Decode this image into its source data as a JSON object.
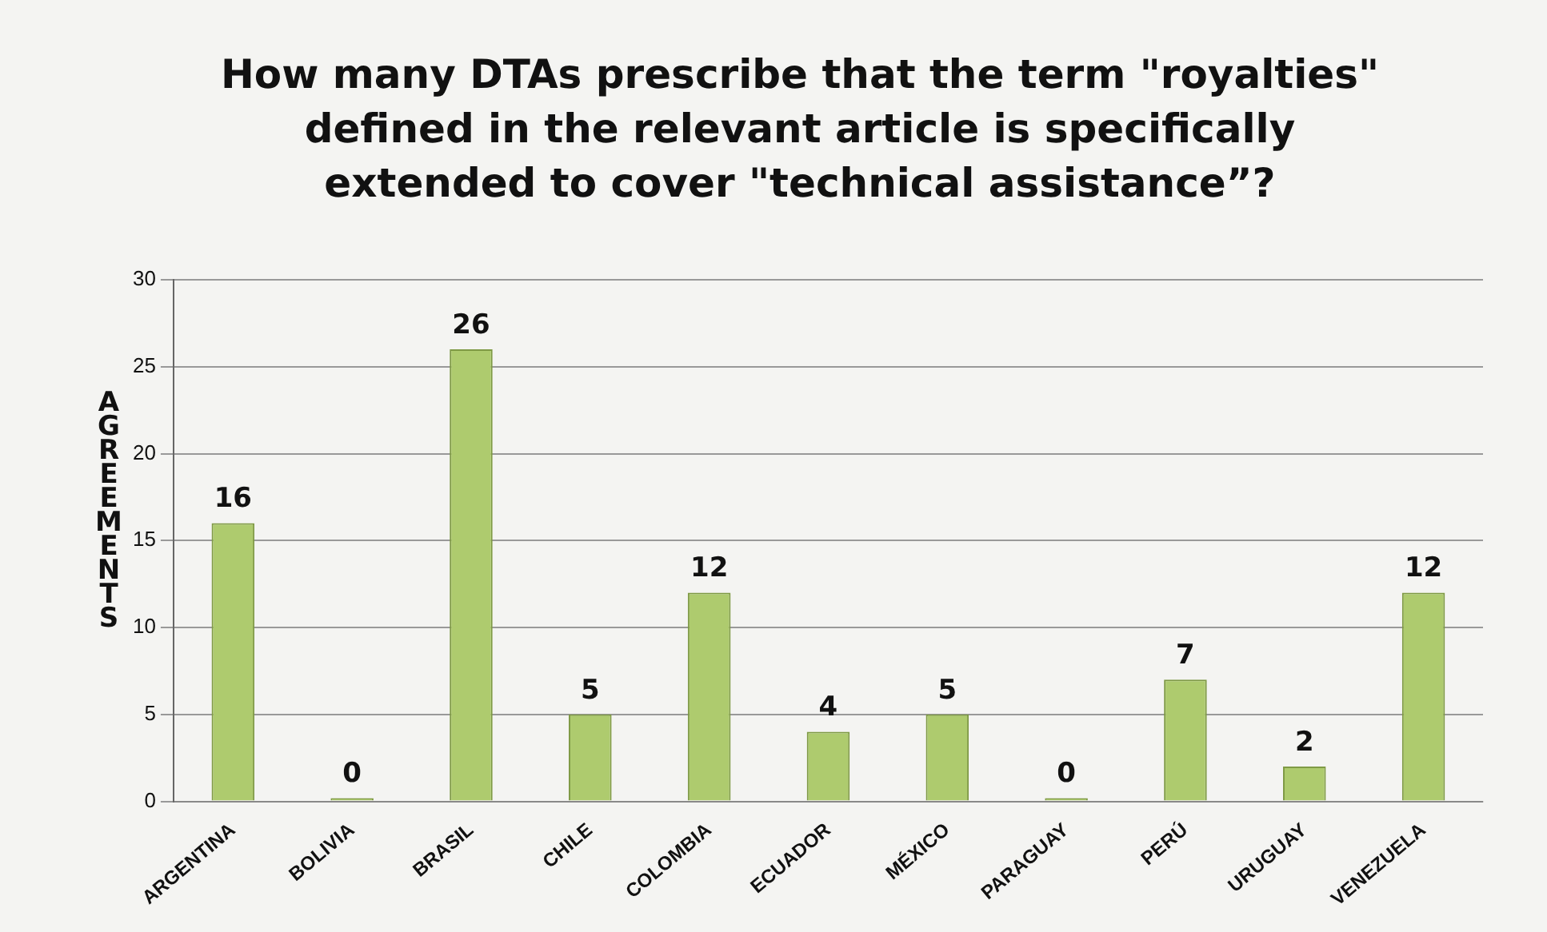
{
  "chart_data": {
    "type": "bar",
    "title": "How many DTAs prescribe that the term \"royalties\" defined in the relevant article is specifically extended to cover \"technical assistance”?",
    "ylabel": "AGREEMENTS",
    "categories": [
      "ARGENTINA",
      "BOLIVIA",
      "BRASIL",
      "CHILE",
      "COLOMBIA",
      "ECUADOR",
      "MÉXICO",
      "PARAGUAY",
      "PERÚ",
      "URUGUAY",
      "VENEZUELA"
    ],
    "values": [
      16,
      0,
      26,
      5,
      12,
      4,
      5,
      0,
      7,
      2,
      12
    ],
    "color": "#aecb6e",
    "ylim": [
      0,
      30
    ],
    "yticks": [
      0,
      5,
      10,
      15,
      20,
      25,
      30
    ],
    "grid": "y",
    "data_labels": true
  }
}
